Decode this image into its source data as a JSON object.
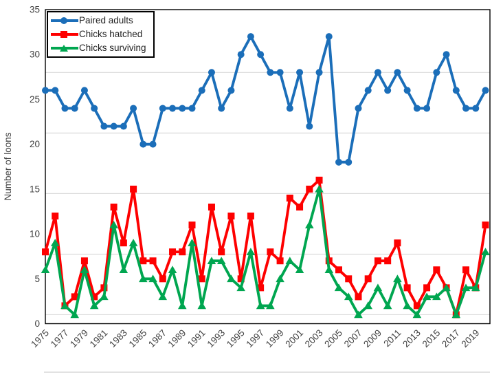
{
  "chart_data": {
    "type": "line",
    "title": "",
    "xlabel": "",
    "ylabel": "Number of loons",
    "ylim": [
      0,
      35
    ],
    "y_ticks": [
      "0",
      "5",
      "10",
      "15",
      "20",
      "25",
      "30",
      "35"
    ],
    "x": [
      1975,
      1976,
      1977,
      1978,
      1979,
      1980,
      1981,
      1982,
      1983,
      1984,
      1985,
      1986,
      1987,
      1988,
      1989,
      1990,
      1991,
      1992,
      1993,
      1994,
      1995,
      1996,
      1997,
      1998,
      1999,
      2000,
      2001,
      2002,
      2003,
      2004,
      2005,
      2006,
      2007,
      2008,
      2009,
      2010,
      2011,
      2012,
      2013,
      2014,
      2015,
      2016,
      2017,
      2018,
      2019,
      2020
    ],
    "x_tick_labels": [
      "1975",
      "1977",
      "1979",
      "1981",
      "1983",
      "1985",
      "1987",
      "1989",
      "1991",
      "1993",
      "1995",
      "1997",
      "1999",
      "2001",
      "2003",
      "2005",
      "2007",
      "2009",
      "2011",
      "2013",
      "2015",
      "2017",
      "2019"
    ],
    "grid": "horizontal",
    "gridline_values": [
      1,
      7.75,
      14.5,
      21.25,
      28
    ],
    "legend_position": "top-left",
    "axis_color": "#000000",
    "gridline_color": "#d9d9d9",
    "tick_label_color": "#404040",
    "series": [
      {
        "name": "Paired adults",
        "color": "#1b6eb9",
        "marker": "circle",
        "values": [
          26,
          26,
          24,
          24,
          26,
          24,
          22,
          22,
          22,
          24,
          20,
          20,
          24,
          24,
          24,
          24,
          26,
          28,
          24,
          26,
          30,
          32,
          30,
          28,
          28,
          24,
          28,
          22,
          28,
          32,
          18,
          18,
          24,
          26,
          28,
          26,
          28,
          26,
          24,
          24,
          28,
          30,
          26,
          24,
          24,
          26
        ]
      },
      {
        "name": "Chicks hatched",
        "color": "#fe0000",
        "marker": "square",
        "values": [
          8,
          12,
          2,
          3,
          7,
          3,
          4,
          13,
          9,
          15,
          7,
          7,
          5,
          8,
          8,
          11,
          5,
          13,
          8,
          12,
          5,
          12,
          4,
          8,
          7,
          14,
          13,
          15,
          16,
          7,
          6,
          5,
          3,
          5,
          7,
          7,
          9,
          4,
          2,
          4,
          6,
          4,
          1,
          6,
          4,
          11
        ]
      },
      {
        "name": "Chicks surviving",
        "color": "#00a650",
        "marker": "triangle",
        "values": [
          6,
          9,
          2,
          1,
          6,
          2,
          3,
          11,
          6,
          9,
          5,
          5,
          3,
          6,
          2,
          9,
          2,
          7,
          7,
          5,
          4,
          8,
          2,
          2,
          5,
          7,
          6,
          11,
          15,
          6,
          4,
          3,
          1,
          2,
          4,
          2,
          5,
          2,
          1,
          3,
          3,
          4,
          1,
          4,
          4,
          8
        ]
      }
    ]
  }
}
